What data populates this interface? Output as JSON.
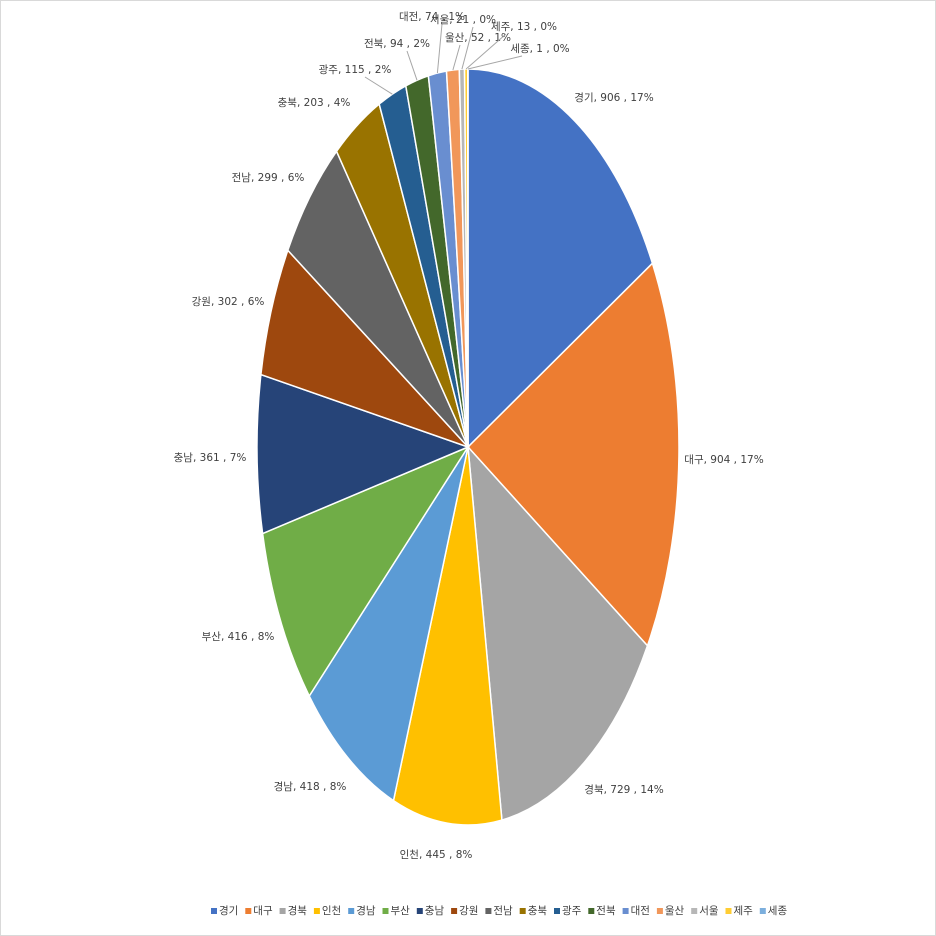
{
  "chart_data": {
    "type": "pie",
    "categories": [
      "경기",
      "대구",
      "경북",
      "인천",
      "경남",
      "부산",
      "충남",
      "강원",
      "전남",
      "충북",
      "광주",
      "전북",
      "대전",
      "울산",
      "서울",
      "제주",
      "세종"
    ],
    "values": [
      906,
      904,
      729,
      445,
      418,
      416,
      361,
      302,
      299,
      203,
      115,
      94,
      74,
      52,
      21,
      13,
      1
    ],
    "value_labels": [
      "경기, 906 , 17%",
      "대구, 904 , 17%",
      "경북, 729 , 14%",
      "인천, 445 , 8%",
      "경남, 418 , 8%",
      "부산, 416 , 8%",
      "충남, 361 , 7%",
      "강원, 302 , 6%",
      "전남, 299 , 6%",
      "충북, 203 , 4%",
      "광주, 115 , 2%",
      "전북, 94 , 2%",
      "대전, 74 , 1%",
      "울산, 52 , 1%",
      "서울, 21 , 0%",
      "제주, 13 , 0%",
      "세종, 1 , 0%"
    ],
    "colors": [
      "#4472C4",
      "#ED7D31",
      "#A5A5A5",
      "#FFC000",
      "#5B9BD5",
      "#70AD47",
      "#264478",
      "#9E480E",
      "#636363",
      "#997300",
      "#255E91",
      "#43682B",
      "#698ED0",
      "#F1975A",
      "#B7B7B7",
      "#FFCD33",
      "#7CAFDD"
    ],
    "legend": "bottom"
  }
}
